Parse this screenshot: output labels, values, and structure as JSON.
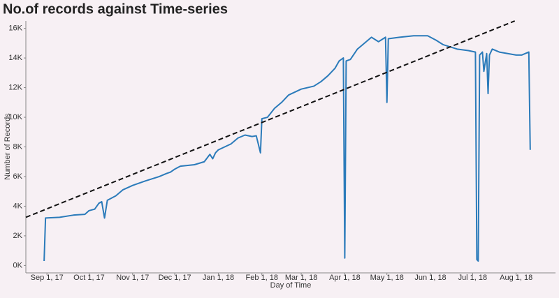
{
  "chart_data": {
    "type": "line",
    "title": "No.of records against Time-series",
    "x_label": "Day of Time",
    "y_label": "Number of Records",
    "color": "#2b7bba",
    "grid": false,
    "x": [
      "2017-08-30",
      "2017-08-31",
      "2017-09-10",
      "2017-09-20",
      "2017-09-28",
      "2017-10-01",
      "2017-10-05",
      "2017-10-08",
      "2017-10-10",
      "2017-10-12",
      "2017-10-14",
      "2017-10-20",
      "2017-10-25",
      "2017-11-01",
      "2017-11-10",
      "2017-11-20",
      "2017-11-25",
      "2017-11-28",
      "2017-12-01",
      "2017-12-05",
      "2017-12-15",
      "2017-12-22",
      "2017-12-26",
      "2017-12-28",
      "2017-12-30",
      "2018-01-01",
      "2018-01-10",
      "2018-01-15",
      "2018-01-20",
      "2018-01-25",
      "2018-01-28",
      "2018-01-31",
      "2018-02-01",
      "2018-02-05",
      "2018-02-10",
      "2018-02-15",
      "2018-02-20",
      "2018-03-01",
      "2018-03-10",
      "2018-03-15",
      "2018-03-20",
      "2018-03-25",
      "2018-03-28",
      "2018-03-31",
      "2018-04-01",
      "2018-04-02",
      "2018-04-05",
      "2018-04-10",
      "2018-04-15",
      "2018-04-20",
      "2018-04-25",
      "2018-04-30",
      "2018-05-01",
      "2018-05-02",
      "2018-05-10",
      "2018-05-20",
      "2018-05-30",
      "2018-06-05",
      "2018-06-10",
      "2018-06-20",
      "2018-06-28",
      "2018-07-03",
      "2018-07-04",
      "2018-07-05",
      "2018-07-06",
      "2018-07-08",
      "2018-07-09",
      "2018-07-11",
      "2018-07-12",
      "2018-07-13",
      "2018-07-15",
      "2018-07-20",
      "2018-08-01",
      "2018-08-05",
      "2018-08-10",
      "2018-08-11"
    ],
    "values": [
      300,
      3200,
      3250,
      3400,
      3450,
      3700,
      3800,
      4200,
      4300,
      3200,
      4400,
      4700,
      5100,
      5400,
      5700,
      6000,
      6200,
      6300,
      6500,
      6700,
      6800,
      7000,
      7500,
      7200,
      7600,
      7800,
      8200,
      8600,
      8800,
      8700,
      8750,
      7600,
      9900,
      10000,
      10600,
      11000,
      11500,
      11900,
      12100,
      12400,
      12800,
      13300,
      13800,
      14000,
      500,
      13800,
      13900,
      14600,
      15000,
      15400,
      15100,
      15400,
      11000,
      15300,
      15400,
      15500,
      15500,
      15200,
      14900,
      14600,
      14500,
      14400,
      400,
      300,
      14200,
      14400,
      13100,
      14300,
      11600,
      14200,
      14600,
      14400,
      14200,
      14200,
      14400,
      7800
    ],
    "trend": {
      "x": [
        "2017-08-17",
        "2018-07-31"
      ],
      "values": [
        3250,
        16500
      ],
      "color": "#111111",
      "dashed": true
    },
    "xlim": [
      "2017-08-17",
      "2018-08-29"
    ],
    "xticks": [
      {
        "value": "2017-09-01",
        "label": "Sep 1, 17"
      },
      {
        "value": "2017-10-01",
        "label": "Oct 1, 17"
      },
      {
        "value": "2017-11-01",
        "label": "Nov 1, 17"
      },
      {
        "value": "2017-12-01",
        "label": "Dec 1, 17"
      },
      {
        "value": "2018-01-01",
        "label": "Jan 1, 18"
      },
      {
        "value": "2018-02-01",
        "label": "Feb 1, 18"
      },
      {
        "value": "2018-03-01",
        "label": "Mar 1, 18"
      },
      {
        "value": "2018-04-01",
        "label": "Apr 1, 18"
      },
      {
        "value": "2018-05-01",
        "label": "May 1, 18"
      },
      {
        "value": "2018-06-01",
        "label": "Jun 1, 18"
      },
      {
        "value": "2018-07-01",
        "label": "Jul 1, 18"
      },
      {
        "value": "2018-08-01",
        "label": "Aug 1, 18"
      }
    ],
    "ylim": [
      -500,
      16500
    ],
    "yticks": [
      {
        "value": 0,
        "label": "0K"
      },
      {
        "value": 2000,
        "label": "2K"
      },
      {
        "value": 4000,
        "label": "4K"
      },
      {
        "value": 6000,
        "label": "6K"
      },
      {
        "value": 8000,
        "label": "8K"
      },
      {
        "value": 10000,
        "label": "10K"
      },
      {
        "value": 12000,
        "label": "12K"
      },
      {
        "value": 14000,
        "label": "14K"
      },
      {
        "value": 16000,
        "label": "16K"
      }
    ]
  }
}
